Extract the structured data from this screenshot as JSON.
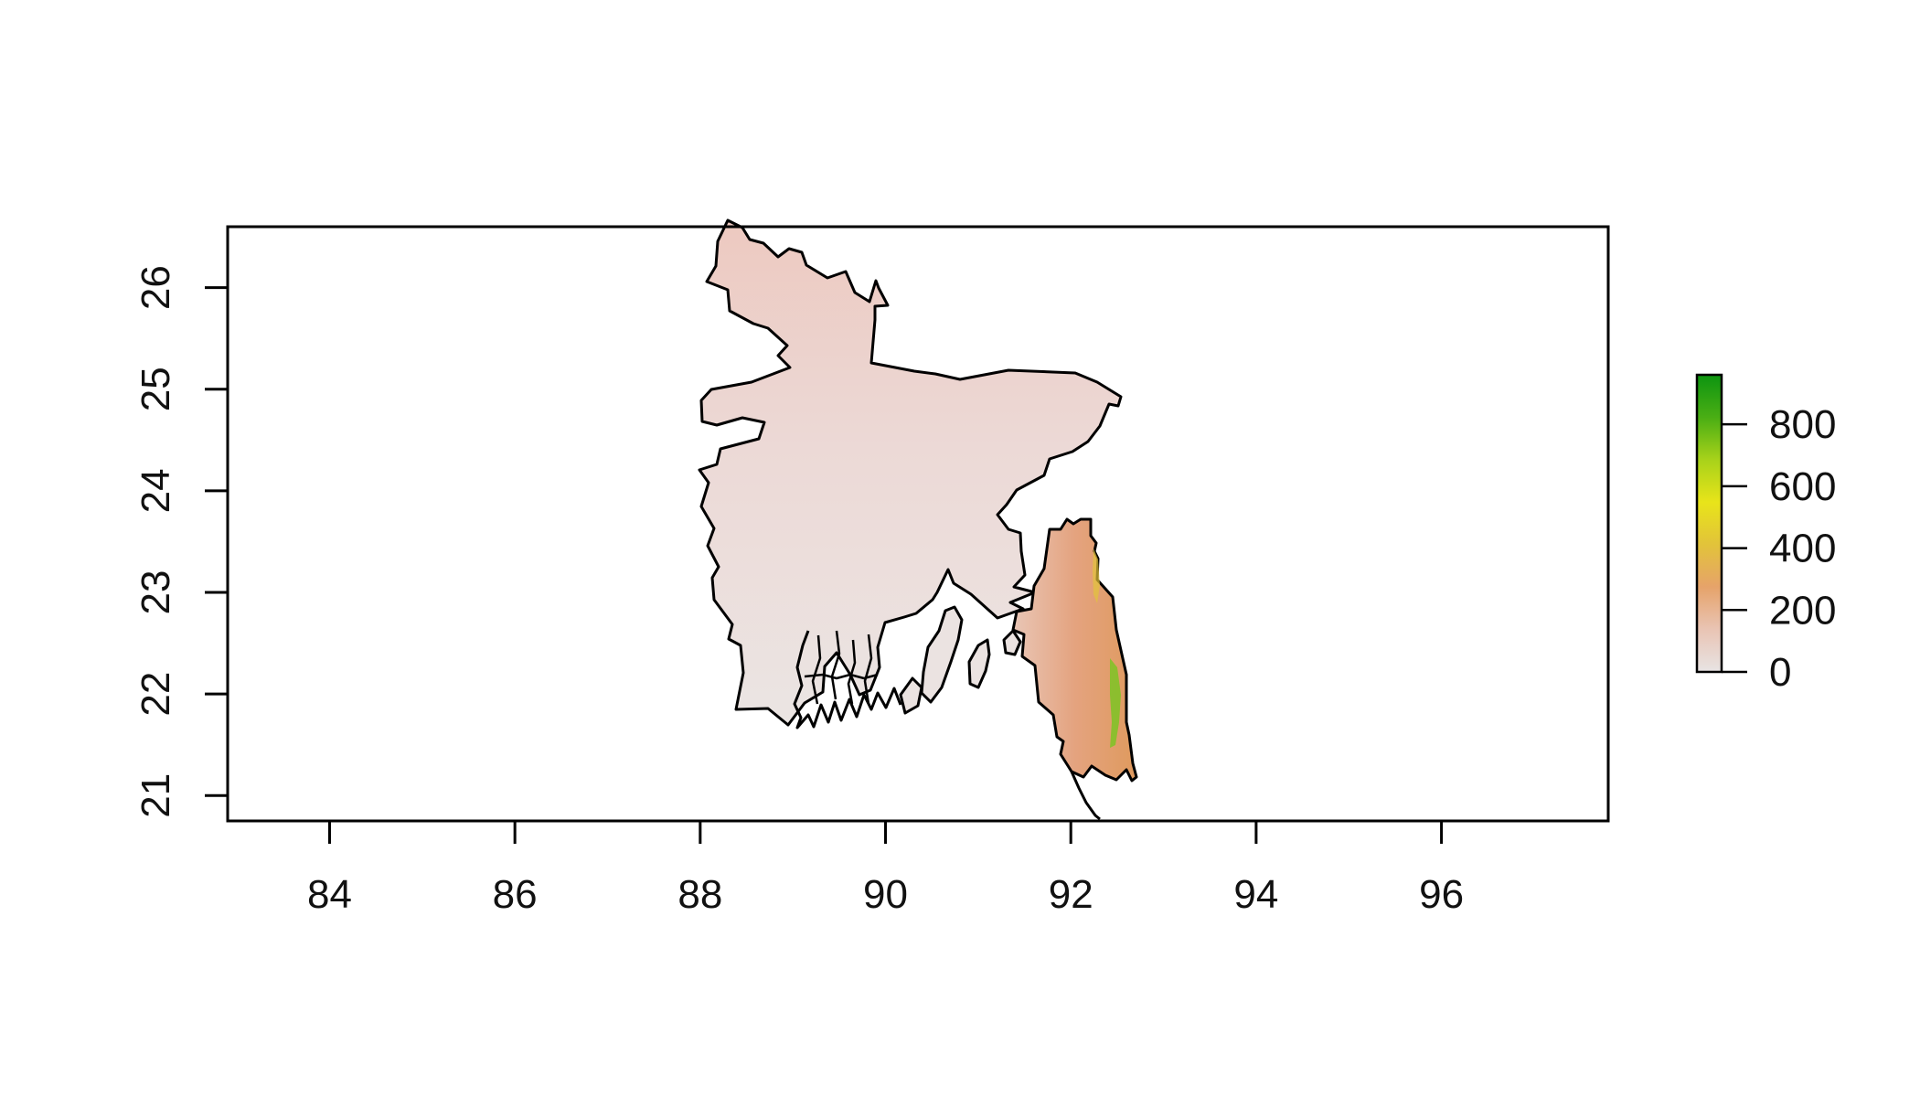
{
  "chart_data": {
    "type": "heatmap",
    "title": "",
    "xlabel": "",
    "ylabel": "",
    "xlim": [
      82.9,
      97.8
    ],
    "ylim": [
      20.75,
      26.6
    ],
    "x_ticks": [
      84,
      86,
      88,
      90,
      92,
      94,
      96
    ],
    "x_tick_labels": [
      "84",
      "86",
      "88",
      "90",
      "92",
      "94",
      "96"
    ],
    "y_ticks": [
      21,
      22,
      23,
      24,
      25,
      26
    ],
    "y_tick_labels": [
      "21",
      "22",
      "23",
      "24",
      "25",
      "26"
    ],
    "legend": {
      "placement": "right",
      "ticks": [
        0,
        200,
        400,
        600,
        800
      ],
      "tick_labels": [
        "0",
        "200",
        "400",
        "600",
        "800"
      ],
      "range": [
        0,
        960
      ],
      "colors": [
        "#e8e4e4",
        "#e9c4b4",
        "#e6a36a",
        "#e2c33a",
        "#e8e41a",
        "#a8d21a",
        "#4aae14",
        "#0c9410"
      ]
    },
    "region_color": "#ecd6d1",
    "highland_color": "#e3a27a",
    "outline_color": "#000000"
  }
}
